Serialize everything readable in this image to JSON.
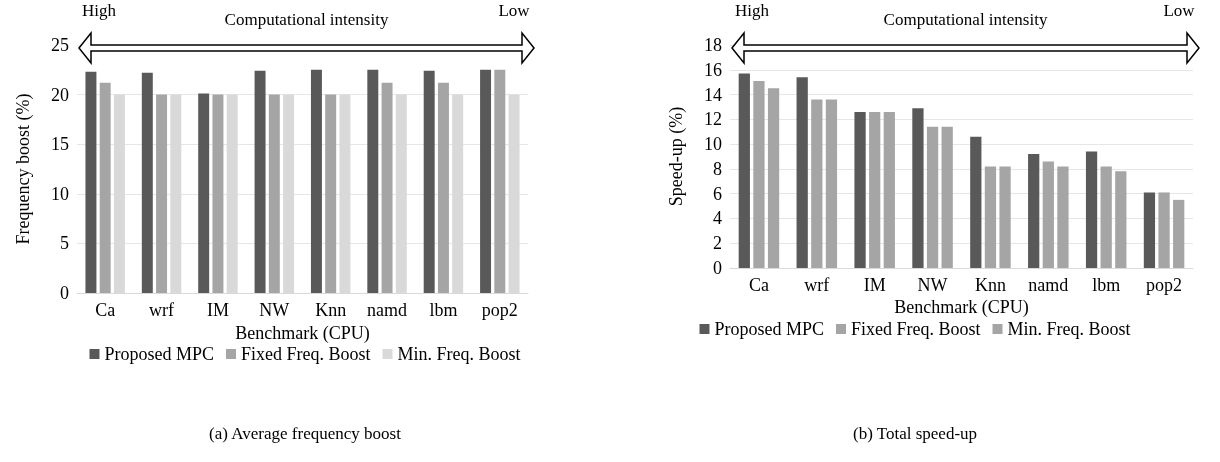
{
  "chart_data": [
    {
      "type": "bar",
      "title": "(a) Average frequency boost",
      "xlabel": "Benchmark (CPU)",
      "ylabel": "Frequency boost (%)",
      "annotations": [
        "High",
        "Computational intensity",
        "Low"
      ],
      "categories": [
        "Ca",
        "wrf",
        "IM",
        "NW",
        "Knn",
        "namd",
        "lbm",
        "pop2"
      ],
      "series": [
        {
          "name": "Proposed MPC",
          "color": "#595959",
          "values": [
            22.3,
            22.2,
            20.1,
            22.4,
            22.5,
            22.5,
            22.4,
            22.5
          ]
        },
        {
          "name": "Fixed Freq. Boost",
          "color": "#a5a5a5",
          "values": [
            21.2,
            20,
            20,
            20,
            20,
            21.2,
            21.2,
            22.5
          ]
        },
        {
          "name": "Min. Freq. Boost",
          "color": "#d9d9d9",
          "values": [
            20,
            20,
            20,
            20,
            20,
            20,
            20,
            20
          ]
        }
      ],
      "ylim": [
        0,
        25
      ],
      "yticks": [
        0,
        5,
        10,
        15,
        20,
        25
      ],
      "grid": "y",
      "legend": "bottom"
    },
    {
      "type": "bar",
      "title": "(b) Total speed-up",
      "xlabel": "Benchmark (CPU)",
      "ylabel": "Speed-up (%)",
      "annotations": [
        "High",
        "Computational intensity",
        "Low"
      ],
      "categories": [
        "Ca",
        "wrf",
        "IM",
        "NW",
        "Knn",
        "namd",
        "lbm",
        "pop2"
      ],
      "series": [
        {
          "name": "Proposed MPC",
          "color": "#595959",
          "values": [
            15.7,
            15.4,
            12.6,
            12.9,
            10.6,
            9.2,
            9.4,
            6.1
          ]
        },
        {
          "name": "Fixed Freq. Boost",
          "color": "#a5a5a5",
          "values": [
            15.1,
            13.6,
            12.6,
            11.4,
            8.2,
            8.6,
            8.2,
            6.1
          ]
        },
        {
          "name": "Min. Freq. Boost",
          "color": "#a5a5a5",
          "values": [
            14.5,
            13.6,
            12.6,
            11.4,
            8.2,
            8.2,
            7.8,
            5.5
          ]
        }
      ],
      "ylim": [
        0,
        18
      ],
      "yticks": [
        0,
        2,
        4,
        6,
        8,
        10,
        12,
        14,
        16,
        18
      ],
      "grid": "y",
      "legend": "bottom"
    }
  ]
}
